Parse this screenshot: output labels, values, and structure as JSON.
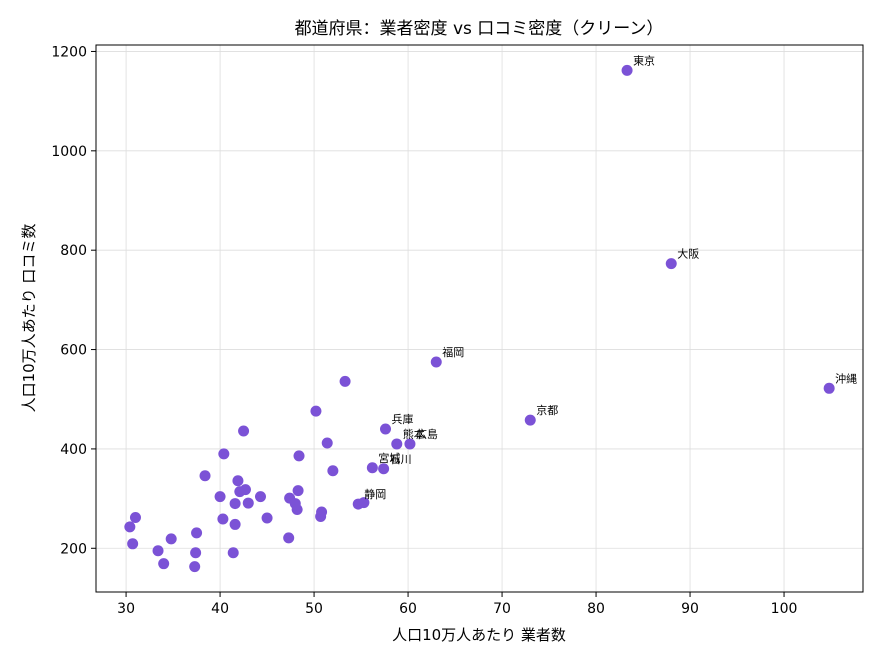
{
  "chart_data": {
    "type": "scatter",
    "title": "都道府県：業者密度 vs 口コミ密度（クリーン）",
    "xlabel": "人口10万人あたり 業者数",
    "ylabel": "人口10万人あたり 口コミ数",
    "xlim": [
      26.8,
      108.4
    ],
    "ylim": [
      112,
      1213
    ],
    "xticks": [
      30,
      40,
      50,
      60,
      70,
      80,
      90,
      100
    ],
    "yticks": [
      200,
      400,
      600,
      800,
      1000,
      1200
    ],
    "grid": true,
    "color": "#7B52D6",
    "points": [
      {
        "x": 83.3,
        "y": 1162,
        "label": "東京"
      },
      {
        "x": 88.0,
        "y": 773,
        "label": "大阪"
      },
      {
        "x": 104.8,
        "y": 522,
        "label": "沖縄"
      },
      {
        "x": 63.0,
        "y": 575,
        "label": "福岡"
      },
      {
        "x": 73.0,
        "y": 458,
        "label": "京都"
      },
      {
        "x": 57.6,
        "y": 440,
        "label": "兵庫"
      },
      {
        "x": 58.8,
        "y": 410,
        "label": "熊本"
      },
      {
        "x": 60.2,
        "y": 410,
        "label": "広島"
      },
      {
        "x": 56.2,
        "y": 362,
        "label": "宮城"
      },
      {
        "x": 57.4,
        "y": 360,
        "label": "石川"
      },
      {
        "x": 54.7,
        "y": 289,
        "label": "静岡"
      },
      {
        "x": 55.3,
        "y": 292
      },
      {
        "x": 53.3,
        "y": 536
      },
      {
        "x": 50.2,
        "y": 476
      },
      {
        "x": 51.4,
        "y": 412
      },
      {
        "x": 52.0,
        "y": 356
      },
      {
        "x": 48.4,
        "y": 386
      },
      {
        "x": 42.5,
        "y": 436
      },
      {
        "x": 40.4,
        "y": 390
      },
      {
        "x": 38.4,
        "y": 346
      },
      {
        "x": 41.9,
        "y": 336
      },
      {
        "x": 42.7,
        "y": 318
      },
      {
        "x": 42.1,
        "y": 314
      },
      {
        "x": 40.0,
        "y": 304
      },
      {
        "x": 44.3,
        "y": 304
      },
      {
        "x": 41.6,
        "y": 290
      },
      {
        "x": 43.0,
        "y": 291
      },
      {
        "x": 47.4,
        "y": 301
      },
      {
        "x": 48.0,
        "y": 290
      },
      {
        "x": 48.3,
        "y": 316
      },
      {
        "x": 48.2,
        "y": 278
      },
      {
        "x": 50.8,
        "y": 273
      },
      {
        "x": 50.7,
        "y": 264
      },
      {
        "x": 45.0,
        "y": 261
      },
      {
        "x": 40.3,
        "y": 259
      },
      {
        "x": 41.6,
        "y": 248
      },
      {
        "x": 37.5,
        "y": 231
      },
      {
        "x": 47.3,
        "y": 221
      },
      {
        "x": 34.8,
        "y": 219
      },
      {
        "x": 31.0,
        "y": 262
      },
      {
        "x": 30.4,
        "y": 243
      },
      {
        "x": 30.7,
        "y": 209
      },
      {
        "x": 33.4,
        "y": 195
      },
      {
        "x": 37.4,
        "y": 191
      },
      {
        "x": 41.4,
        "y": 191
      },
      {
        "x": 34.0,
        "y": 169
      },
      {
        "x": 37.3,
        "y": 163
      }
    ]
  }
}
